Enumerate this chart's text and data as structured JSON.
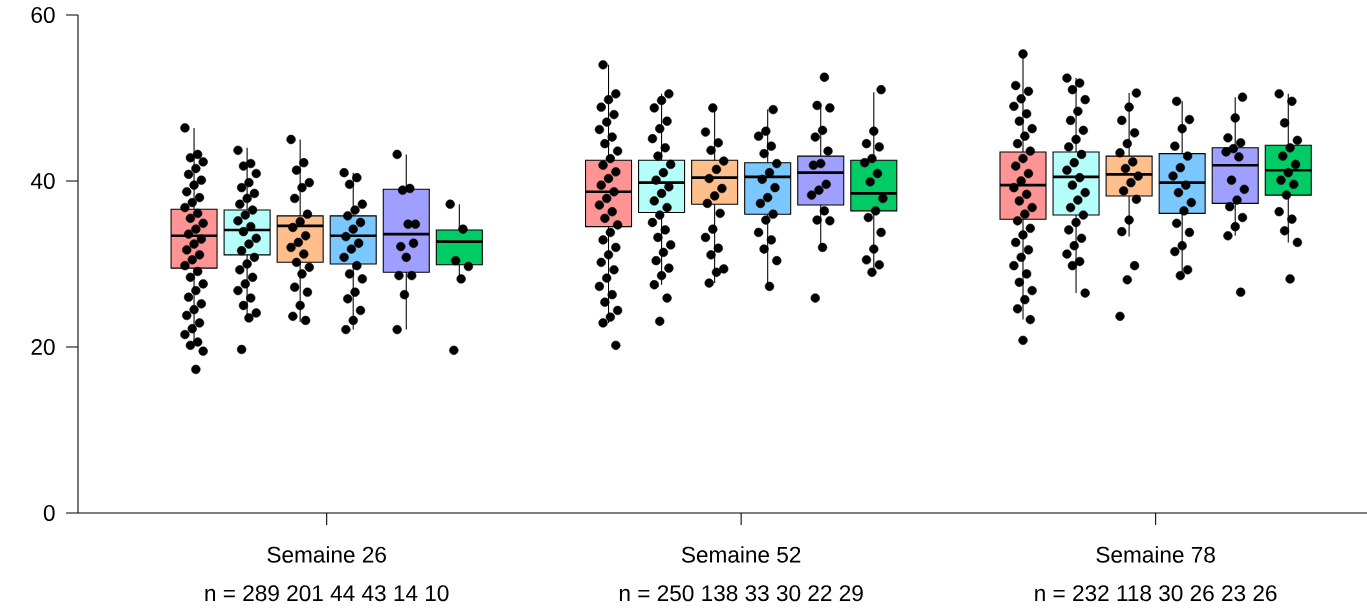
{
  "chart_data": {
    "type": "box",
    "categories": [
      "Semaine 26",
      "Semaine 52",
      "Semaine 78"
    ],
    "ylim": [
      0,
      60
    ],
    "yticks": [
      0,
      20,
      40,
      60
    ],
    "annotations": [
      "n = 289  201  44 43 14 10",
      "n = 250  138  33 30 22 29",
      "n = 232  118  30 26 23  26"
    ],
    "series": [
      {
        "color": "#ff9494",
        "boxes": [
          {
            "low": 20.2,
            "q1": 29.5,
            "median": 33.4,
            "q3": 36.6,
            "high": 46.4
          },
          {
            "low": 22.9,
            "q1": 34.5,
            "median": 38.7,
            "q3": 42.5,
            "high": 54.0
          },
          {
            "low": 23.3,
            "q1": 35.4,
            "median": 39.5,
            "q3": 43.5,
            "high": 55.3
          }
        ]
      },
      {
        "color": "#b5fffa",
        "boxes": [
          {
            "low": 23.5,
            "q1": 31.1,
            "median": 34.1,
            "q3": 36.5,
            "high": 44.0
          },
          {
            "low": 27.5,
            "q1": 36.2,
            "median": 39.8,
            "q3": 42.5,
            "high": 50.5
          },
          {
            "low": 26.5,
            "q1": 35.9,
            "median": 40.5,
            "q3": 43.5,
            "high": 52.4
          }
        ]
      },
      {
        "color": "#ffbf8c",
        "boxes": [
          {
            "low": 23.0,
            "q1": 30.2,
            "median": 34.6,
            "q3": 35.8,
            "high": 45.0
          },
          {
            "low": 27.7,
            "q1": 37.2,
            "median": 40.4,
            "q3": 42.5,
            "high": 48.8
          },
          {
            "low": 33.3,
            "q1": 38.2,
            "median": 40.8,
            "q3": 43.0,
            "high": 50.6
          }
        ]
      },
      {
        "color": "#7ac8ff",
        "boxes": [
          {
            "low": 22.1,
            "q1": 30.0,
            "median": 33.4,
            "q3": 35.8,
            "high": 41.0
          },
          {
            "low": 27.3,
            "q1": 36.0,
            "median": 40.5,
            "q3": 42.2,
            "high": 48.6
          },
          {
            "low": 28.6,
            "q1": 36.1,
            "median": 39.8,
            "q3": 43.3,
            "high": 49.6
          }
        ]
      },
      {
        "color": "#9f9fff",
        "boxes": [
          {
            "low": 22.1,
            "q1": 29.0,
            "median": 33.6,
            "q3": 39.0,
            "high": 43.2
          },
          {
            "low": 32.0,
            "q1": 37.1,
            "median": 41.0,
            "q3": 43.0,
            "high": 48.9
          },
          {
            "low": 33.4,
            "q1": 37.3,
            "median": 41.9,
            "q3": 44.0,
            "high": 50.1
          }
        ]
      },
      {
        "color": "#00cc66",
        "boxes": [
          {
            "low": 28.2,
            "q1": 29.9,
            "median": 32.7,
            "q3": 34.1,
            "high": 37.2
          },
          {
            "low": 29.0,
            "q1": 36.4,
            "median": 38.5,
            "q3": 42.5,
            "high": 50.7
          },
          {
            "low": 32.6,
            "q1": 38.3,
            "median": 41.3,
            "q3": 44.3,
            "high": 50.5
          }
        ]
      },
      {
        "type": "scatter",
        "color": "#000000",
        "marker": "circle",
        "x": [
          "Semaine 26",
          "Semaine 26",
          "Semaine 26",
          "Semaine 26",
          "Semaine 26",
          "Semaine 26",
          "Semaine 26",
          "Semaine 26",
          "Semaine 26",
          "Semaine 26",
          "Semaine 26",
          "Semaine 26",
          "Semaine 26",
          "Semaine 26",
          "Semaine 26",
          "Semaine 26",
          "Semaine 26",
          "Semaine 26",
          "Semaine 26",
          "Semaine 26",
          "Semaine 26",
          "Semaine 26",
          "Semaine 26",
          "Semaine 26",
          "Semaine 26",
          "Semaine 26",
          "Semaine 26",
          "Semaine 26",
          "Semaine 26",
          "Semaine 26",
          "Semaine 26",
          "Semaine 26",
          "Semaine 26",
          "Semaine 26",
          "Semaine 26",
          "Semaine 26",
          "Semaine 26",
          "Semaine 26",
          "Semaine 52",
          "Semaine 52",
          "Semaine 52",
          "Semaine 52",
          "Semaine 52",
          "Semaine 52",
          "Semaine 52",
          "Semaine 52",
          "Semaine 52",
          "Semaine 52",
          "Semaine 52",
          "Semaine 52",
          "Semaine 52",
          "Semaine 52",
          "Semaine 52",
          "Semaine 52",
          "Semaine 52",
          "Semaine 52",
          "Semaine 52",
          "Semaine 52",
          "Semaine 52",
          "Semaine 52",
          "Semaine 52",
          "Semaine 52",
          "Semaine 52",
          "Semaine 52",
          "Semaine 52",
          "Semaine 52",
          "Semaine 52",
          "Semaine 52",
          "Semaine 52",
          "Semaine 52",
          "Semaine 52",
          "Semaine 52",
          "Semaine 52",
          "Semaine 78",
          "Semaine 78",
          "Semaine 78",
          "Semaine 78",
          "Semaine 78",
          "Semaine 78",
          "Semaine 78",
          "Semaine 78",
          "Semaine 78",
          "Semaine 78",
          "Semaine 78",
          "Semaine 78",
          "Semaine 78",
          "Semaine 78",
          "Semaine 78",
          "Semaine 78",
          "Semaine 78",
          "Semaine 78",
          "Semaine 78",
          "Semaine 78",
          "Semaine 78",
          "Semaine 78",
          "Semaine 78",
          "Semaine 78",
          "Semaine 78",
          "Semaine 78",
          "Semaine 78",
          "Semaine 78",
          "Semaine 78",
          "Semaine 78",
          "Semaine 78",
          "Semaine 78",
          "Semaine 78",
          "Semaine 78"
        ],
        "values": [
          46.4,
          43.2,
          42.8,
          42.3,
          41.5,
          40.8,
          40.1,
          39.5,
          38.7,
          38.0,
          37.4,
          36.8,
          36.1,
          35.5,
          34.9,
          34.2,
          33.6,
          33.0,
          32.4,
          31.7,
          31.1,
          30.5,
          29.8,
          29.1,
          28.4,
          27.6,
          26.8,
          26.0,
          25.2,
          24.5,
          23.8,
          22.9,
          22.2,
          21.5,
          20.6,
          20.2,
          19.5,
          17.3,
          54.0,
          50.5,
          49.8,
          48.9,
          48.0,
          47.1,
          46.2,
          45.3,
          44.5,
          43.6,
          42.7,
          41.9,
          41.1,
          40.3,
          39.5,
          38.7,
          37.9,
          37.1,
          36.3,
          35.5,
          34.7,
          33.8,
          32.9,
          32.0,
          31.1,
          30.2,
          29.3,
          28.3,
          27.3,
          26.3,
          25.4,
          24.4,
          23.6,
          22.9,
          20.2,
          55.3,
          51.5,
          50.8,
          49.9,
          49.0,
          48.1,
          47.2,
          46.3,
          45.4,
          44.5,
          43.6,
          42.7,
          41.8,
          40.9,
          40.0,
          39.2,
          38.4,
          37.6,
          36.8,
          36.0,
          35.2,
          34.3,
          33.5,
          32.6,
          31.7,
          30.8,
          29.8,
          28.8,
          27.8,
          26.8,
          25.7,
          24.6,
          23.3,
          20.8
        ]
      },
      {
        "type": "scatter",
        "color": "#000000",
        "marker": "circle",
        "x": [
          "Semaine 26",
          "Semaine 26",
          "Semaine 26",
          "Semaine 26",
          "Semaine 26",
          "Semaine 26",
          "Semaine 26",
          "Semaine 26",
          "Semaine 26",
          "Semaine 26",
          "Semaine 26",
          "Semaine 26",
          "Semaine 26",
          "Semaine 26",
          "Semaine 26",
          "Semaine 26",
          "Semaine 26",
          "Semaine 26",
          "Semaine 26",
          "Semaine 26",
          "Semaine 26",
          "Semaine 26",
          "Semaine 26",
          "Semaine 26",
          "Semaine 26",
          "Semaine 26",
          "Semaine 26",
          "Semaine 26",
          "Semaine 52",
          "Semaine 52",
          "Semaine 52",
          "Semaine 52",
          "Semaine 52",
          "Semaine 52",
          "Semaine 52",
          "Semaine 52",
          "Semaine 52",
          "Semaine 52",
          "Semaine 52",
          "Semaine 52",
          "Semaine 52",
          "Semaine 52",
          "Semaine 52",
          "Semaine 52",
          "Semaine 52",
          "Semaine 52",
          "Semaine 52",
          "Semaine 52",
          "Semaine 52",
          "Semaine 52",
          "Semaine 52",
          "Semaine 52",
          "Semaine 52",
          "Semaine 52",
          "Semaine 52",
          "Semaine 78",
          "Semaine 78",
          "Semaine 78",
          "Semaine 78",
          "Semaine 78",
          "Semaine 78",
          "Semaine 78",
          "Semaine 78",
          "Semaine 78",
          "Semaine 78",
          "Semaine 78",
          "Semaine 78",
          "Semaine 78",
          "Semaine 78",
          "Semaine 78",
          "Semaine 78",
          "Semaine 78",
          "Semaine 78",
          "Semaine 78",
          "Semaine 78",
          "Semaine 78",
          "Semaine 78",
          "Semaine 78",
          "Semaine 78",
          "Semaine 78",
          "Semaine 78"
        ],
        "values": [
          43.7,
          42.1,
          41.8,
          40.9,
          39.8,
          39.2,
          38.5,
          37.9,
          37.2,
          36.5,
          35.9,
          35.2,
          34.5,
          33.9,
          33.1,
          32.4,
          31.6,
          30.8,
          30.0,
          29.3,
          28.4,
          27.6,
          26.8,
          25.9,
          25.0,
          24.1,
          23.5,
          19.7,
          50.5,
          49.7,
          48.8,
          47.2,
          46.3,
          45.1,
          44.0,
          43.0,
          42.0,
          41.0,
          40.1,
          39.3,
          38.5,
          37.6,
          36.8,
          35.9,
          35.0,
          34.1,
          33.2,
          32.3,
          31.4,
          30.4,
          29.5,
          28.6,
          27.5,
          25.9,
          23.1,
          52.4,
          51.8,
          51.0,
          49.8,
          48.4,
          47.3,
          46.1,
          45.0,
          44.1,
          43.2,
          42.2,
          41.3,
          40.4,
          39.5,
          38.6,
          37.7,
          36.8,
          35.9,
          35.0,
          34.1,
          33.1,
          32.2,
          31.2,
          30.3,
          29.8,
          26.5
        ]
      },
      {
        "type": "scatter",
        "color": "#000000",
        "marker": "circle",
        "x": [
          "Semaine 26",
          "Semaine 26",
          "Semaine 26",
          "Semaine 26",
          "Semaine 26",
          "Semaine 26",
          "Semaine 26",
          "Semaine 26",
          "Semaine 26",
          "Semaine 26",
          "Semaine 26",
          "Semaine 26",
          "Semaine 26",
          "Semaine 26",
          "Semaine 26",
          "Semaine 26",
          "Semaine 26",
          "Semaine 26",
          "Semaine 26",
          "Semaine 26",
          "Semaine 26",
          "Semaine 52",
          "Semaine 52",
          "Semaine 52",
          "Semaine 52",
          "Semaine 52",
          "Semaine 52",
          "Semaine 52",
          "Semaine 52",
          "Semaine 52",
          "Semaine 52",
          "Semaine 52",
          "Semaine 52",
          "Semaine 52",
          "Semaine 52",
          "Semaine 52",
          "Semaine 52",
          "Semaine 52",
          "Semaine 52",
          "Semaine 78",
          "Semaine 78",
          "Semaine 78",
          "Semaine 78",
          "Semaine 78",
          "Semaine 78",
          "Semaine 78",
          "Semaine 78",
          "Semaine 78",
          "Semaine 78",
          "Semaine 78",
          "Semaine 78",
          "Semaine 78",
          "Semaine 78",
          "Semaine 78",
          "Semaine 78",
          "Semaine 78"
        ],
        "values": [
          45.0,
          42.2,
          41.3,
          39.8,
          39.2,
          37.9,
          36.0,
          35.1,
          34.4,
          33.4,
          32.6,
          32.0,
          31.2,
          30.2,
          29.6,
          28.8,
          27.2,
          26.6,
          25.0,
          23.7,
          23.2,
          48.8,
          45.9,
          44.6,
          43.7,
          42.4,
          41.4,
          40.3,
          39.1,
          38.2,
          37.3,
          36.1,
          34.2,
          33.2,
          31.9,
          31.1,
          29.4,
          29.0,
          27.7,
          50.6,
          48.9,
          47.3,
          45.8,
          44.5,
          43.4,
          42.3,
          41.5,
          40.6,
          39.8,
          38.8,
          37.8,
          35.3,
          33.9,
          29.8,
          28.1,
          23.7
        ]
      },
      {
        "type": "scatter",
        "color": "#000000",
        "marker": "circle",
        "x": [
          "Semaine 26",
          "Semaine 26",
          "Semaine 26",
          "Semaine 26",
          "Semaine 26",
          "Semaine 26",
          "Semaine 26",
          "Semaine 26",
          "Semaine 26",
          "Semaine 26",
          "Semaine 26",
          "Semaine 26",
          "Semaine 26",
          "Semaine 26",
          "Semaine 26",
          "Semaine 26",
          "Semaine 26",
          "Semaine 26",
          "Semaine 26",
          "Semaine 26",
          "Semaine 52",
          "Semaine 52",
          "Semaine 52",
          "Semaine 52",
          "Semaine 52",
          "Semaine 52",
          "Semaine 52",
          "Semaine 52",
          "Semaine 52",
          "Semaine 52",
          "Semaine 52",
          "Semaine 52",
          "Semaine 52",
          "Semaine 52",
          "Semaine 52",
          "Semaine 52",
          "Semaine 52",
          "Semaine 52",
          "Semaine 78",
          "Semaine 78",
          "Semaine 78",
          "Semaine 78",
          "Semaine 78",
          "Semaine 78",
          "Semaine 78",
          "Semaine 78",
          "Semaine 78",
          "Semaine 78",
          "Semaine 78",
          "Semaine 78",
          "Semaine 78",
          "Semaine 78",
          "Semaine 78",
          "Semaine 78",
          "Semaine 78"
        ],
        "values": [
          41.0,
          40.4,
          39.6,
          37.2,
          36.5,
          35.8,
          35.0,
          34.2,
          33.3,
          32.5,
          31.8,
          30.8,
          29.8,
          28.8,
          28.2,
          26.6,
          25.8,
          24.4,
          23.2,
          22.1,
          48.6,
          46.0,
          45.4,
          44.2,
          43.3,
          42.1,
          41.0,
          40.2,
          39.2,
          38.0,
          37.3,
          36.0,
          35.3,
          33.8,
          32.9,
          31.8,
          30.4,
          27.3,
          49.6,
          47.4,
          46.3,
          44.2,
          43.0,
          41.6,
          40.6,
          39.5,
          38.6,
          37.4,
          36.4,
          34.9,
          33.8,
          32.2,
          31.5,
          29.3,
          28.6
        ]
      },
      {
        "type": "scatter",
        "color": "#000000",
        "marker": "circle",
        "x": [
          "Semaine 26",
          "Semaine 26",
          "Semaine 26",
          "Semaine 26",
          "Semaine 26",
          "Semaine 26",
          "Semaine 26",
          "Semaine 26",
          "Semaine 26",
          "Semaine 26",
          "Semaine 26",
          "Semaine 26",
          "Semaine 52",
          "Semaine 52",
          "Semaine 52",
          "Semaine 52",
          "Semaine 52",
          "Semaine 52",
          "Semaine 52",
          "Semaine 52",
          "Semaine 52",
          "Semaine 52",
          "Semaine 52",
          "Semaine 52",
          "Semaine 52",
          "Semaine 52",
          "Semaine 52",
          "Semaine 52",
          "Semaine 78",
          "Semaine 78",
          "Semaine 78",
          "Semaine 78",
          "Semaine 78",
          "Semaine 78",
          "Semaine 78",
          "Semaine 78",
          "Semaine 78",
          "Semaine 78",
          "Semaine 78",
          "Semaine 78",
          "Semaine 78",
          "Semaine 78",
          "Semaine 78"
        ],
        "values": [
          43.2,
          39.1,
          38.9,
          34.8,
          34.8,
          32.1,
          32.5,
          30.8,
          28.6,
          28.6,
          26.3,
          22.1,
          52.5,
          49.1,
          48.8,
          46.1,
          45.3,
          43.6,
          42.1,
          41.9,
          39.6,
          38.9,
          38.3,
          36.4,
          35.3,
          35.2,
          32.0,
          25.9,
          50.1,
          47.6,
          45.2,
          44.6,
          43.9,
          43.5,
          42.9,
          40.1,
          39.0,
          37.7,
          36.9,
          35.6,
          34.5,
          33.4,
          26.6
        ]
      },
      {
        "type": "scatter",
        "color": "#000000",
        "marker": "circle",
        "x": [
          "Semaine 26",
          "Semaine 26",
          "Semaine 26",
          "Semaine 26",
          "Semaine 26",
          "Semaine 26",
          "Semaine 52",
          "Semaine 52",
          "Semaine 52",
          "Semaine 52",
          "Semaine 52",
          "Semaine 52",
          "Semaine 52",
          "Semaine 52",
          "Semaine 52",
          "Semaine 52",
          "Semaine 52",
          "Semaine 52",
          "Semaine 52",
          "Semaine 52",
          "Semaine 52",
          "Semaine 52",
          "Semaine 78",
          "Semaine 78",
          "Semaine 78",
          "Semaine 78",
          "Semaine 78",
          "Semaine 78",
          "Semaine 78",
          "Semaine 78",
          "Semaine 78",
          "Semaine 78",
          "Semaine 78",
          "Semaine 78",
          "Semaine 78",
          "Semaine 78",
          "Semaine 78",
          "Semaine 78"
        ],
        "values": [
          37.2,
          34.2,
          30.4,
          29.7,
          28.2,
          19.6,
          51.0,
          46.0,
          44.5,
          44.1,
          42.7,
          42.2,
          40.9,
          39.9,
          37.9,
          36.4,
          35.6,
          33.8,
          31.8,
          30.5,
          29.9,
          29.0,
          50.5,
          49.6,
          47.0,
          44.9,
          44.0,
          43.0,
          42.0,
          41.0,
          40.1,
          39.6,
          38.3,
          36.3,
          35.4,
          34.0,
          32.6,
          28.2
        ]
      }
    ]
  }
}
